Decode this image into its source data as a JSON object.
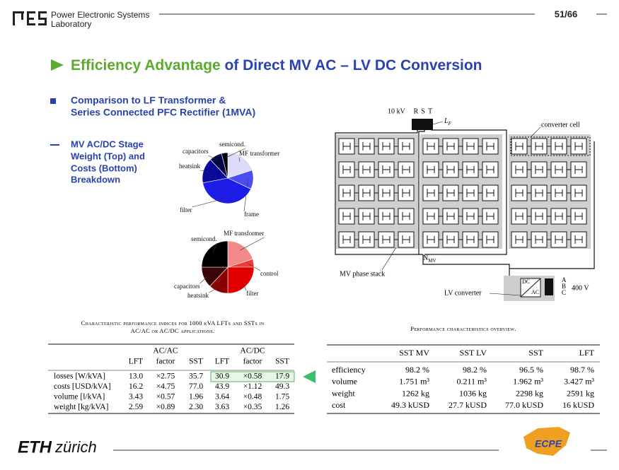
{
  "header": {
    "lab_line1": "Power Electronic Systems",
    "lab_line2": "Laboratory",
    "page": "51/66"
  },
  "title": {
    "highlight": "Efficiency Advantage",
    "rest": "of Direct MV AC – LV DC Conversion"
  },
  "bullet": {
    "lines": [
      "Comparison to LF Transformer &",
      "Series Connected PFC Rectifier (1MVA)"
    ]
  },
  "sub_bullet": {
    "lines": [
      "MV AC/DC Stage",
      "Weight (Top) and",
      "Costs (Bottom)",
      "Breakdown"
    ]
  },
  "pies": [
    {
      "slices": [
        {
          "label": "MF transformer",
          "value": 20,
          "color": "#dcdcf8"
        },
        {
          "label": "frame",
          "value": 12,
          "color": "#4c4cf0"
        },
        {
          "label": "filter",
          "value": 40,
          "color": "#1c1ce6"
        },
        {
          "label": "heatsink",
          "value": 16,
          "color": "#0a0a9a"
        },
        {
          "label": "capacitors",
          "value": 8,
          "color": "#05054a"
        },
        {
          "label": "semicond.",
          "value": 4,
          "color": "#000000"
        }
      ]
    },
    {
      "slices": [
        {
          "label": "MF transformer",
          "value": 20,
          "color": "#f38a8a"
        },
        {
          "label": "control",
          "value": 5,
          "color": "#f03a3a"
        },
        {
          "label": "filter",
          "value": 25,
          "color": "#e00000"
        },
        {
          "label": "heatsink",
          "value": 12,
          "color": "#8a0000"
        },
        {
          "label": "capacitors",
          "value": 13,
          "color": "#3a0505"
        },
        {
          "label": "semicond.",
          "value": 25,
          "color": "#000000"
        }
      ]
    }
  ],
  "diagram": {
    "voltage_mv": "10 kV",
    "phases": [
      "R",
      "S",
      "T"
    ],
    "inductor": "L",
    "inductor_sub": "F",
    "converter_cell": "converter cell",
    "phase_stack": "MV phase stack",
    "neutral": "N",
    "neutral_sub": "MV",
    "lv_converter": "LV converter",
    "dc": "DC",
    "ac": "AC",
    "outputs": [
      "A",
      "B",
      "C"
    ],
    "voltage_lv": "400 V"
  },
  "table1": {
    "caption": [
      "Characteristic performance indices for 1000 kVA LFTs and SSTs in",
      "AC/AC or AC/DC applications."
    ],
    "groups": [
      "AC/AC",
      "AC/DC"
    ],
    "columns": [
      "LFT",
      "factor",
      "SST",
      "LFT",
      "factor",
      "SST"
    ],
    "rows": [
      [
        "losses [W/kVA]",
        "13.0",
        "×2.75",
        "35.7",
        "30.9",
        "×0.58",
        "17.9"
      ],
      [
        "costs [USD/kVA]",
        "16.2",
        "×4.75",
        "77.0",
        "43.9",
        "×1.12",
        "49.3"
      ],
      [
        "volume [l/kVA]",
        "3.43",
        "×0.57",
        "1.96",
        "3.64",
        "×0.48",
        "1.75"
      ],
      [
        "weight [kg/kVA]",
        "2.59",
        "×0.89",
        "2.30",
        "3.63",
        "×0.35",
        "1.26"
      ]
    ]
  },
  "table2": {
    "caption": "Performance characteristics overview.",
    "columns": [
      "SST MV",
      "SST LV",
      "SST",
      "LFT"
    ],
    "rows": [
      [
        "efficiency",
        "98.2 %",
        "98.2 %",
        "96.5 %",
        "98.7 %"
      ],
      [
        "volume",
        "1.751 m³",
        "0.211 m³",
        "1.962 m³",
        "3.427 m³"
      ],
      [
        "weight",
        "1262 kg",
        "1036 kg",
        "2298 kg",
        "2591 kg"
      ],
      [
        "cost",
        "49.3 kUSD",
        "27.7 kUSD",
        "77.0 kUSD",
        "16 kUSD"
      ]
    ]
  },
  "footer": {
    "eth": "ETH",
    "zurich": "zürich",
    "ecpe": "ECPE"
  }
}
